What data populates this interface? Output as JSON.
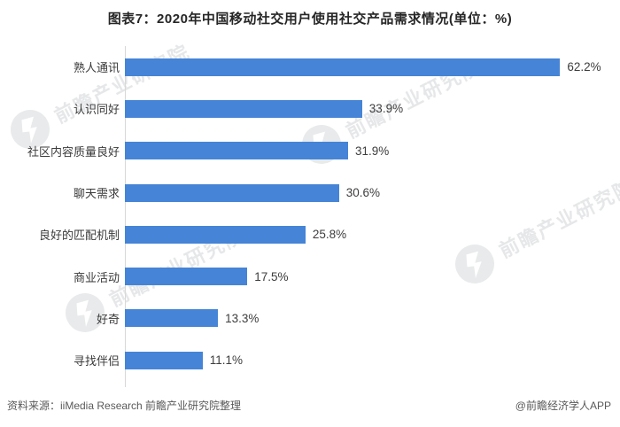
{
  "title": "图表7：2020年中国移动社交用户使用社交产品需求情况(单位：%)",
  "chart_data": {
    "type": "bar",
    "orientation": "horizontal",
    "title": "图表7：2020年中国移动社交用户使用社交产品需求情况(单位：%)",
    "unit": "%",
    "categories": [
      "熟人通讯",
      "认识同好",
      "社区内容质量良好",
      "聊天需求",
      "良好的匹配机制",
      "商业活动",
      "好奇",
      "寻找伴侣"
    ],
    "values": [
      62.2,
      33.9,
      31.9,
      30.6,
      25.8,
      17.5,
      13.3,
      11.1
    ],
    "value_labels": [
      "62.2%",
      "33.9%",
      "31.9%",
      "30.6%",
      "25.8%",
      "17.5%",
      "13.3%",
      "11.1%"
    ],
    "xlim": [
      0,
      70
    ],
    "grid": false,
    "legend": false,
    "bar_color": "#4584d6",
    "value_labels_position": "end-of-bar"
  },
  "footer": {
    "source": "资料来源：iiMedia Research 前瞻产业研究院整理",
    "credit": "@前瞻经济学人APP"
  },
  "watermark": {
    "text": "前瞻产业研究院"
  },
  "colors": {
    "bar": "#4584d6",
    "title_text": "#262626",
    "label_text": "#3a3a3a",
    "footer_text": "#595959",
    "axis_line": "#d8d8d8",
    "watermark": "#d2d5d8"
  }
}
